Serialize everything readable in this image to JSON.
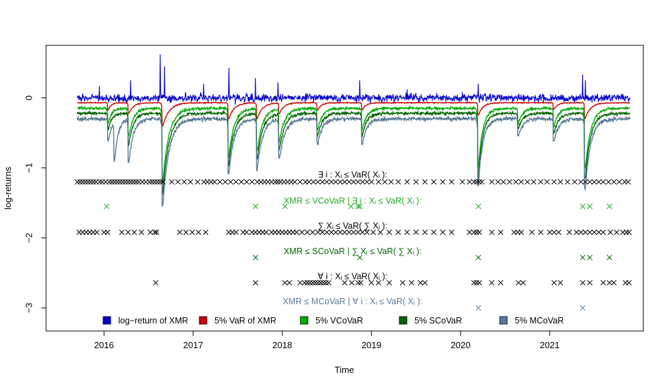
{
  "chart_data": {
    "type": "line",
    "title": "",
    "xlabel": "Time",
    "ylabel": "log-returns",
    "xlim": [
      2015.35,
      2022.05
    ],
    "ylim": [
      -3.33,
      0.75
    ],
    "x_ticks": [
      "2016",
      "2017",
      "2018",
      "2019",
      "2020",
      "2021"
    ],
    "y_ticks": [
      "0",
      "−1",
      "−2",
      "−3"
    ],
    "y_tick_values": [
      0,
      -1,
      -2,
      -3
    ],
    "x_start": 2015.7,
    "x_end": 2021.9,
    "series": [
      {
        "name": "log−return of XMR",
        "color": "#0000cc",
        "base": 0.0,
        "noise": 0.055,
        "spikes": [
          [
            2015.95,
            0.18
          ],
          [
            2016.3,
            0.25
          ],
          [
            2016.63,
            0.62
          ],
          [
            2016.68,
            0.45
          ],
          [
            2017.12,
            0.2
          ],
          [
            2017.4,
            0.43
          ],
          [
            2017.7,
            0.28
          ],
          [
            2017.95,
            0.22
          ],
          [
            2018.87,
            0.25
          ],
          [
            2019.4,
            0.12
          ],
          [
            2020.2,
            0.2
          ],
          [
            2021.37,
            0.33
          ],
          [
            2021.4,
            0.25
          ]
        ]
      },
      {
        "name": "5% VaR of XMR",
        "color": "#cc0000",
        "base": -0.07,
        "noise": 0.006,
        "dips": [
          [
            2016.05,
            -0.1,
            0.03
          ],
          [
            2016.28,
            -0.15,
            0.05
          ],
          [
            2016.66,
            -0.33,
            0.07
          ],
          [
            2017.4,
            -0.23,
            0.06
          ],
          [
            2017.72,
            -0.22,
            0.06
          ],
          [
            2017.97,
            -0.15,
            0.05
          ],
          [
            2018.4,
            -0.1,
            0.04
          ],
          [
            2018.9,
            -0.1,
            0.04
          ],
          [
            2020.2,
            -0.18,
            0.05
          ],
          [
            2021.05,
            -0.09,
            0.04
          ],
          [
            2021.4,
            -0.22,
            0.06
          ]
        ]
      },
      {
        "name": "5% VCoVaR",
        "color": "#00aa00",
        "base": -0.15,
        "noise": 0.018,
        "dips": [
          [
            2016.05,
            -0.2,
            0.04
          ],
          [
            2016.28,
            -0.4,
            0.05
          ],
          [
            2016.66,
            -1.05,
            0.07
          ],
          [
            2017.4,
            -0.7,
            0.06
          ],
          [
            2017.72,
            -0.6,
            0.06
          ],
          [
            2017.97,
            -0.45,
            0.06
          ],
          [
            2018.4,
            -0.3,
            0.05
          ],
          [
            2018.9,
            -0.3,
            0.05
          ],
          [
            2020.2,
            -0.85,
            0.05
          ],
          [
            2020.65,
            -0.2,
            0.05
          ],
          [
            2021.05,
            -0.25,
            0.05
          ],
          [
            2021.4,
            -0.85,
            0.06
          ]
        ]
      },
      {
        "name": "5% SCoVaR",
        "color": "#006400",
        "base": -0.22,
        "noise": 0.02,
        "dips": [
          [
            2016.05,
            -0.22,
            0.04
          ],
          [
            2016.28,
            -0.45,
            0.05
          ],
          [
            2016.66,
            -1.15,
            0.07
          ],
          [
            2017.4,
            -0.75,
            0.06
          ],
          [
            2017.72,
            -0.65,
            0.06
          ],
          [
            2017.97,
            -0.5,
            0.06
          ],
          [
            2018.4,
            -0.32,
            0.05
          ],
          [
            2018.9,
            -0.32,
            0.05
          ],
          [
            2020.2,
            -0.92,
            0.05
          ],
          [
            2020.65,
            -0.22,
            0.05
          ],
          [
            2021.05,
            -0.28,
            0.05
          ],
          [
            2021.4,
            -0.92,
            0.06
          ]
        ]
      },
      {
        "name": "5% MCoVaR",
        "color": "#5a7b96",
        "base": -0.3,
        "noise": 0.028,
        "dips": [
          [
            2016.05,
            -0.3,
            0.04
          ],
          [
            2016.12,
            -0.55,
            0.04
          ],
          [
            2016.28,
            -0.6,
            0.05
          ],
          [
            2016.66,
            -1.25,
            0.07
          ],
          [
            2017.4,
            -0.8,
            0.06
          ],
          [
            2017.72,
            -0.72,
            0.06
          ],
          [
            2017.97,
            -0.55,
            0.06
          ],
          [
            2018.4,
            -0.35,
            0.05
          ],
          [
            2018.9,
            -0.35,
            0.05
          ],
          [
            2020.2,
            -0.95,
            0.05
          ],
          [
            2020.65,
            -0.25,
            0.05
          ],
          [
            2021.05,
            -0.32,
            0.05
          ],
          [
            2021.4,
            -1.0,
            0.06
          ]
        ]
      }
    ],
    "event_rows": [
      {
        "label": "∃ i :  Xᵢ ≤ VaR( Xᵢ ):",
        "color": "#000000",
        "y": -1.2,
        "label_y": -1.1,
        "dates": [
          2015.7,
          2015.73,
          2015.76,
          2015.79,
          2015.82,
          2015.85,
          2015.88,
          2015.91,
          2015.95,
          2015.98,
          2016.02,
          2016.06,
          2016.09,
          2016.12,
          2016.15,
          2016.18,
          2016.21,
          2016.24,
          2016.27,
          2016.3,
          2016.33,
          2016.36,
          2016.39,
          2016.43,
          2016.47,
          2016.51,
          2016.54,
          2016.57,
          2016.6,
          2016.63,
          2016.66,
          2016.76,
          2016.83,
          2016.9,
          2016.97,
          2017.05,
          2017.12,
          2017.16,
          2017.2,
          2017.24,
          2017.3,
          2017.36,
          2017.42,
          2017.48,
          2017.54,
          2017.6,
          2017.66,
          2017.72,
          2017.76,
          2017.8,
          2017.84,
          2017.88,
          2017.92,
          2017.95,
          2017.98,
          2018.02,
          2018.06,
          2018.1,
          2018.14,
          2018.2,
          2018.26,
          2018.3,
          2018.35,
          2018.4,
          2018.45,
          2018.5,
          2018.55,
          2018.6,
          2018.65,
          2018.7,
          2018.75,
          2018.8,
          2018.85,
          2018.9,
          2018.95,
          2019.0,
          2019.08,
          2019.15,
          2019.22,
          2019.3,
          2019.4,
          2019.5,
          2019.6,
          2019.7,
          2019.8,
          2019.9,
          2020.02,
          2020.1,
          2020.15,
          2020.18,
          2020.21,
          2020.24,
          2020.35,
          2020.42,
          2020.48,
          2020.55,
          2020.62,
          2020.68,
          2020.75,
          2020.82,
          2020.9,
          2020.97,
          2021.05,
          2021.12,
          2021.2,
          2021.28,
          2021.35,
          2021.4,
          2021.45,
          2021.5,
          2021.55,
          2021.6,
          2021.66,
          2021.72,
          2021.78,
          2021.84,
          2021.88
        ]
      },
      {
        "label": "XMR ≤ VCoVaR | ∃ i :  Xᵢ ≤ VaR( Xᵢ ):",
        "color": "#22aa22",
        "y": -1.55,
        "label_y": -1.47,
        "dates": [
          2016.03,
          2017.7,
          2018.03,
          2018.77,
          2018.85,
          2018.87,
          2020.2,
          2021.37,
          2021.45,
          2021.67
        ]
      },
      {
        "label": "∑ Xᵢ ≤ VaR( ∑ Xᵢ ):",
        "color": "#000000",
        "y": -1.92,
        "label_y": -1.83,
        "dates": [
          2015.72,
          2015.76,
          2015.8,
          2015.84,
          2015.88,
          2015.92,
          2016.0,
          2016.04,
          2016.2,
          2016.27,
          2016.34,
          2016.42,
          2016.52,
          2016.57,
          2016.59,
          2016.85,
          2016.92,
          2016.99,
          2017.06,
          2017.14,
          2017.4,
          2017.44,
          2017.48,
          2017.56,
          2017.6,
          2017.66,
          2017.7,
          2017.74,
          2017.78,
          2017.82,
          2017.88,
          2017.92,
          2017.96,
          2018.0,
          2018.04,
          2018.08,
          2018.12,
          2018.16,
          2018.22,
          2018.28,
          2018.34,
          2018.4,
          2018.45,
          2018.5,
          2018.55,
          2018.6,
          2018.65,
          2018.7,
          2018.75,
          2018.8,
          2018.85,
          2018.9,
          2018.95,
          2019.02,
          2019.1,
          2019.2,
          2019.3,
          2019.4,
          2019.5,
          2019.6,
          2019.7,
          2019.8,
          2019.9,
          2020.1,
          2020.15,
          2020.18,
          2020.21,
          2020.35,
          2020.45,
          2020.6,
          2020.64,
          2020.68,
          2020.8,
          2020.9,
          2021.0,
          2021.05,
          2021.1,
          2021.22,
          2021.3,
          2021.35,
          2021.4,
          2021.45,
          2021.5,
          2021.55,
          2021.6,
          2021.68,
          2021.75,
          2021.82,
          2021.86,
          2021.89
        ]
      },
      {
        "label": "XMR ≤ SCoVaR | ∑ Xᵢ ≤ VaR( ∑ Xᵢ ):",
        "color": "#006400",
        "y": -2.28,
        "label_y": -2.19,
        "dates": [
          2017.7,
          2018.87,
          2020.2,
          2021.37,
          2021.45,
          2021.67
        ]
      },
      {
        "label": "∀ i :  Xᵢ ≤ VaR( Xᵢ ):",
        "color": "#000000",
        "y": -2.64,
        "label_y": -2.55,
        "dates": [
          2016.58,
          2017.7,
          2018.03,
          2018.08,
          2018.2,
          2018.25,
          2018.28,
          2018.31,
          2018.34,
          2018.37,
          2018.4,
          2018.43,
          2018.46,
          2018.49,
          2018.52,
          2018.7,
          2018.78,
          2018.85,
          2018.88,
          2019.0,
          2019.08,
          2019.2,
          2019.35,
          2019.45,
          2019.55,
          2019.6,
          2020.15,
          2020.18,
          2020.21,
          2020.35,
          2020.45,
          2020.65,
          2020.7,
          2021.05,
          2021.12,
          2021.37,
          2021.45,
          2021.6,
          2021.67,
          2021.72,
          2021.85,
          2021.89
        ]
      },
      {
        "label": "XMR ≤ MCoVaR | ∀ i :  Xᵢ ≤ VaR( Xᵢ ):",
        "color": "#5a7b96",
        "y": -3.0,
        "label_y": -2.91,
        "dates": [
          2020.2,
          2021.37
        ]
      }
    ],
    "legend": {
      "position": "bottom",
      "entries": [
        {
          "label": "log−return of XMR",
          "color": "#0000cc"
        },
        {
          "label": "5% VaR of XMR",
          "color": "#cc0000"
        },
        {
          "label": "5% VCoVaR",
          "color": "#00aa00"
        },
        {
          "label": "5% SCoVaR",
          "color": "#006400"
        },
        {
          "label": "5% MCoVaR",
          "color": "#5a7b96"
        }
      ]
    }
  }
}
